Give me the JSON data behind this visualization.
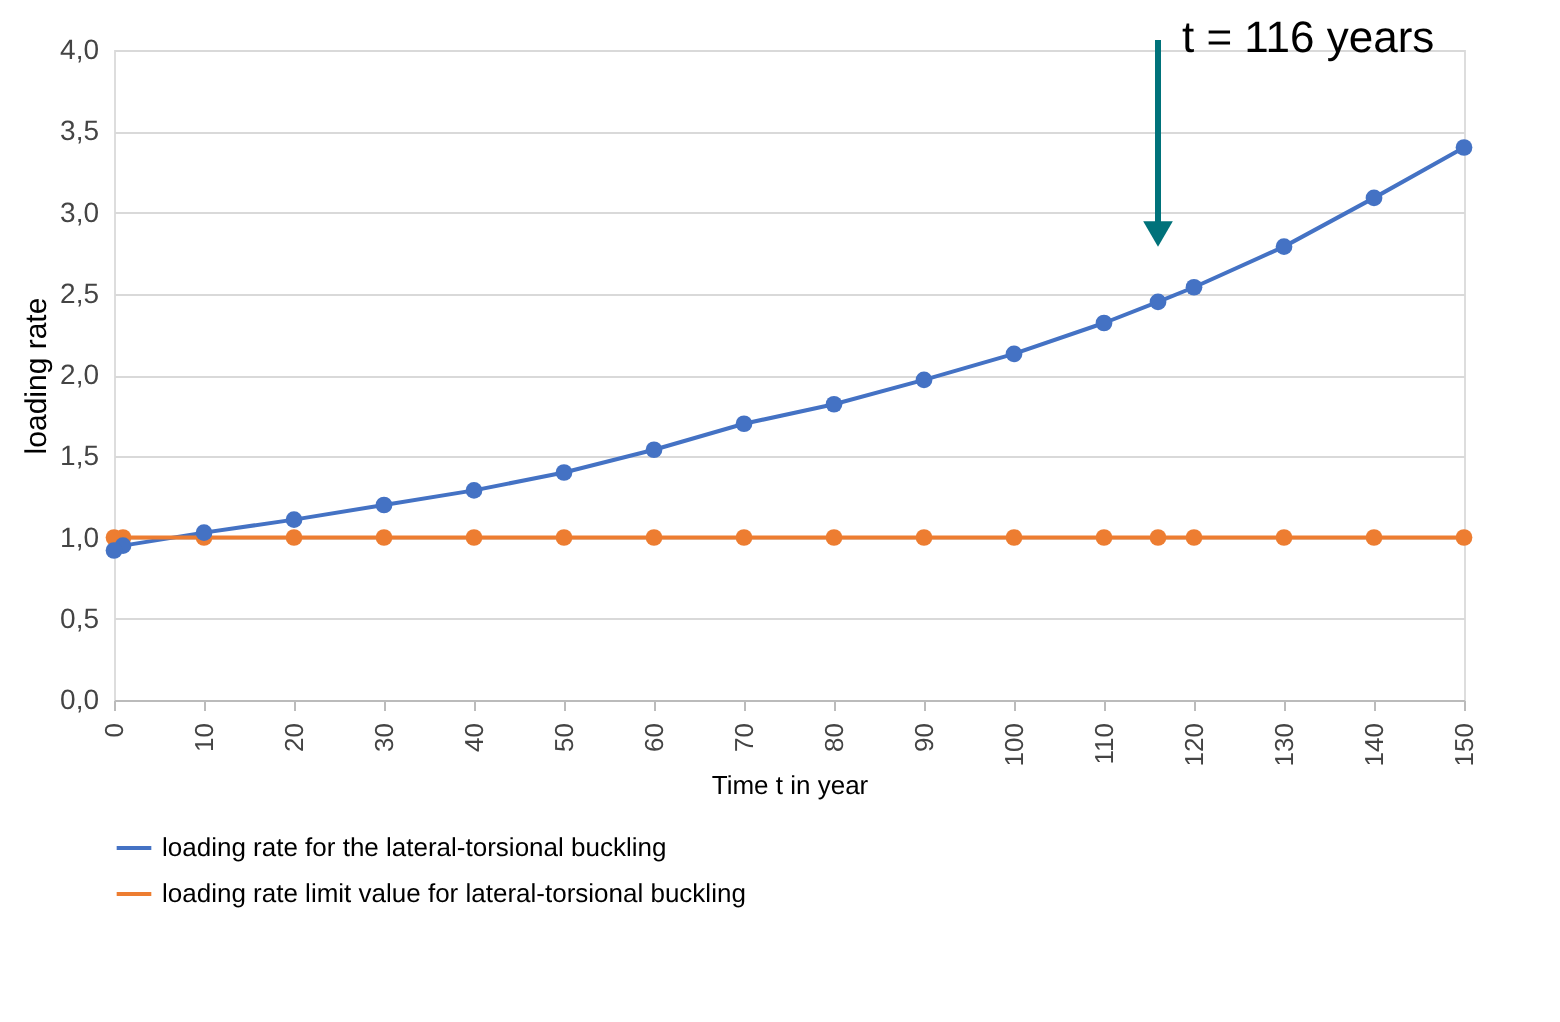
{
  "chart_data": {
    "type": "line",
    "xlabel": "Time t in year",
    "ylabel": "loading rate",
    "x": [
      0,
      1,
      10,
      20,
      30,
      40,
      50,
      60,
      70,
      80,
      90,
      100,
      110,
      116,
      120,
      130,
      140,
      150
    ],
    "series": [
      {
        "name": "loading rate for the lateral-torsional buckling",
        "color": "#4472c4",
        "values": [
          0.92,
          0.95,
          1.03,
          1.11,
          1.2,
          1.29,
          1.4,
          1.54,
          1.7,
          1.82,
          1.97,
          2.13,
          2.32,
          2.45,
          2.54,
          2.79,
          3.09,
          3.4
        ]
      },
      {
        "name": "loading rate limit value for lateral-torsional buckling",
        "color": "#ed7d31",
        "values": [
          1.0,
          1.0,
          1.0,
          1.0,
          1.0,
          1.0,
          1.0,
          1.0,
          1.0,
          1.0,
          1.0,
          1.0,
          1.0,
          1.0,
          1.0,
          1.0,
          1.0,
          1.0
        ]
      }
    ],
    "xlim": [
      0,
      150
    ],
    "xticks": [
      0,
      10,
      20,
      30,
      40,
      50,
      60,
      70,
      80,
      90,
      100,
      110,
      120,
      130,
      140,
      150
    ],
    "ylim": [
      0,
      4
    ],
    "yticks": [
      {
        "value": 0,
        "label": "0,0"
      },
      {
        "value": 0.5,
        "label": "0,5"
      },
      {
        "value": 1,
        "label": "1,0"
      },
      {
        "value": 1.5,
        "label": "1,5"
      },
      {
        "value": 2,
        "label": "2,0"
      },
      {
        "value": 2.5,
        "label": "2,5"
      },
      {
        "value": 3,
        "label": "3,0"
      },
      {
        "value": 3.5,
        "label": "3,5"
      },
      {
        "value": 4,
        "label": "4,0"
      }
    ],
    "annotations": [
      "t = 116 years"
    ],
    "grid": "y",
    "legend": "bottom",
    "marker": "circle",
    "line_style": "solid"
  }
}
